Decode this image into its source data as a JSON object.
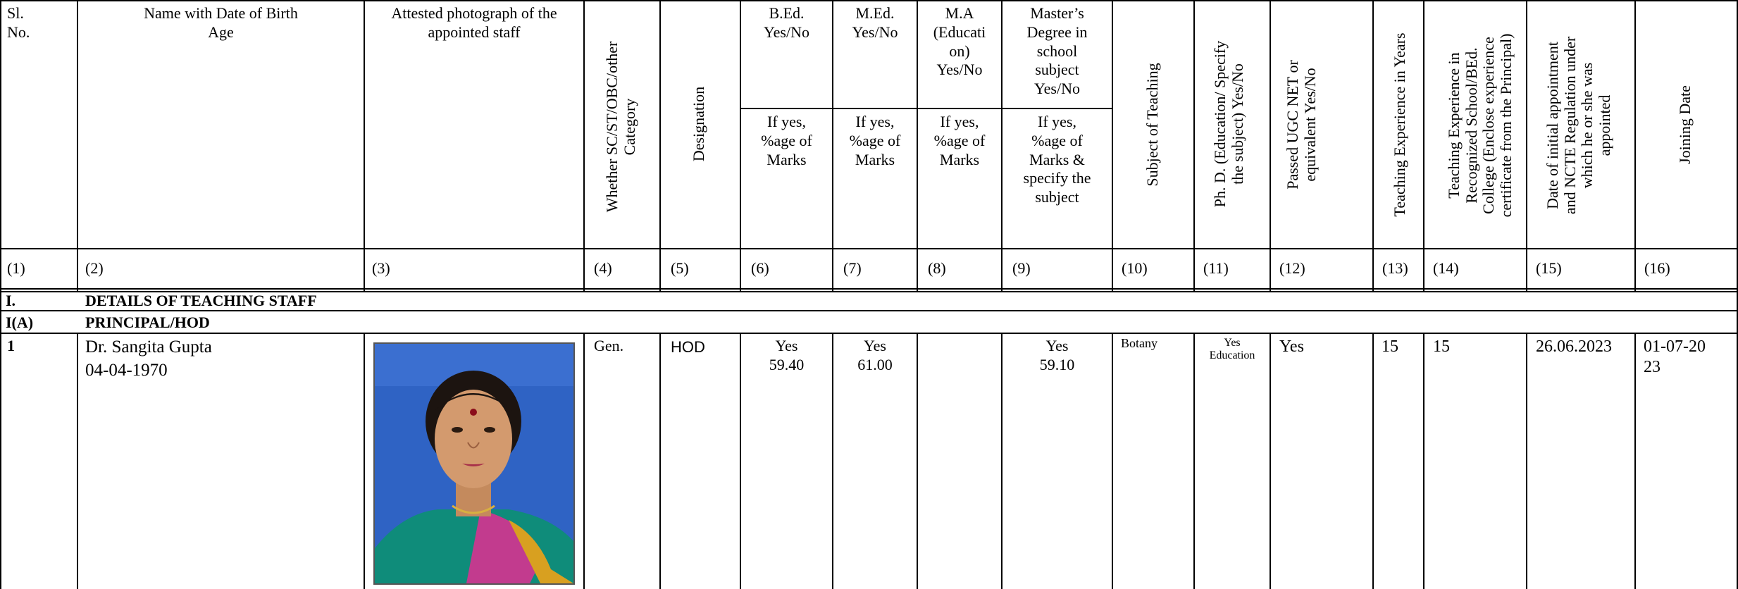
{
  "headers": {
    "sl_no": "Sl.\nNo.",
    "name": "Name with Date of Birth\nAge",
    "photo": "Attested photograph of the\nappointed staff",
    "category": "Whether SC/ST/OBC/other\nCategory",
    "designation": "Designation",
    "bed": "B.Ed.\nYes/No",
    "med": "M.Ed.\nYes/No",
    "ma": "M.A\n(Educati\non)\nYes/No",
    "masters": "Master’s\nDegree in\nschool\nsubject\nYes/No",
    "bed_sub": "If yes,\n%age of\nMarks",
    "med_sub": "If yes,\n%age of\nMarks",
    "ma_sub": "If yes,\n%age of\nMarks",
    "masters_sub": "If yes,\n%age of\nMarks &\nspecify the\nsubject",
    "subject": "Subject of Teaching",
    "phd": "Ph. D. (Education/ Specify\nthe subject) Yes/No",
    "net": "Passed UGC NET or\nequivalent Yes/No",
    "experience": "Teaching Experience in Years",
    "recognized_experience": "Teaching Experience in\nRecognized School/BEd.\nCollege (Enclose experience\ncertificate from the Principal)",
    "initial_appointment": "Date of initial appointment\nand NCTE Regulation under\nwhich he or she was\nappointed",
    "joining": "Joining Date"
  },
  "column_numbers": [
    "(1)",
    "(2)",
    "(3)",
    "(4)",
    "(5)",
    "(6)",
    "(7)",
    "(8)",
    "(9)",
    "(10)",
    "(11)",
    "(12)",
    "(13)",
    "(14)",
    "(15)",
    "(16)"
  ],
  "section": {
    "num": "I.",
    "title": "DETAILS OF TEACHING STAFF"
  },
  "subsection": {
    "num": "I(A)",
    "title": "PRINCIPAL/HOD"
  },
  "row": {
    "sl": "1",
    "name": "Dr. Sangita Gupta",
    "dob": "04-04-1970",
    "category": "Gen.",
    "designation": "HOD",
    "bed": "Yes\n59.40",
    "med": "Yes\n61.00",
    "masters": "Yes\n59.10",
    "subject": "Botany",
    "phd": "Yes\nEducation",
    "net": "Yes",
    "experience": "15",
    "recognized_experience": "15",
    "initial_appointment": "26.06.2023",
    "joining": "01-07-20\n23"
  }
}
